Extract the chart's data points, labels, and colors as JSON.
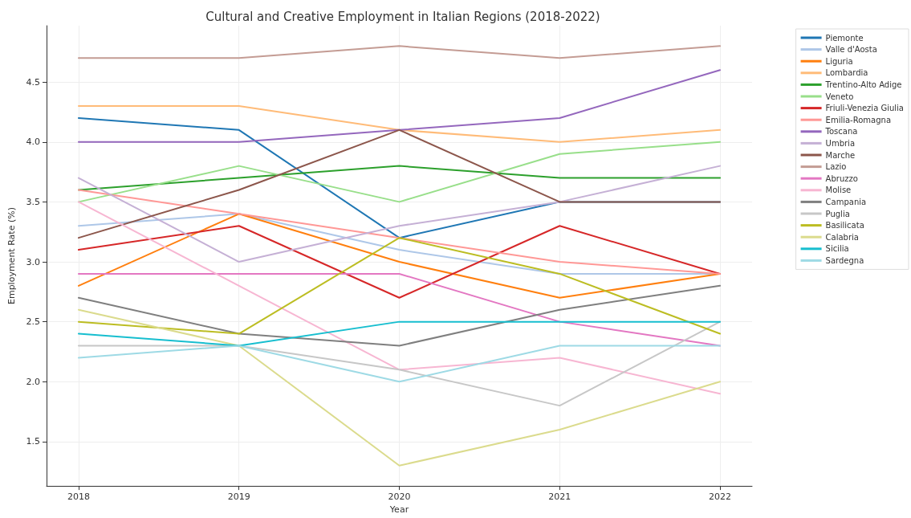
{
  "chart_data": {
    "type": "line",
    "title": "Cultural and Creative Employment in Italian Regions (2018-2022)",
    "xlabel": "Year",
    "ylabel": "Employment Rate (%)",
    "x": [
      2018,
      2019,
      2020,
      2021,
      2022
    ],
    "xlim": [
      2017.8,
      2022.2
    ],
    "xticks": [
      2018,
      2019,
      2020,
      2021,
      2022
    ],
    "ylim": [
      1.13,
      4.97
    ],
    "yticks": [
      1.5,
      {
        "value": 2,
        "label": "2.0"
      },
      2.5,
      {
        "value": 3,
        "label": "3.0"
      },
      3.5,
      {
        "value": 4,
        "label": "4.0"
      },
      4.5
    ],
    "grid": true,
    "legend": "top right",
    "marker": "none",
    "line_style": "solid",
    "series": [
      {
        "name": "Piemonte",
        "color": "#1f77b4",
        "values": [
          4.2,
          4.1,
          3.2,
          3.5,
          3.5
        ]
      },
      {
        "name": "Valle d'Aosta",
        "color": "#aec7e8",
        "values": [
          3.3,
          3.4,
          3.1,
          2.9,
          2.9
        ]
      },
      {
        "name": "Liguria",
        "color": "#ff7f0e",
        "values": [
          2.8,
          3.4,
          3.0,
          2.7,
          2.9
        ]
      },
      {
        "name": "Lombardia",
        "color": "#ffbb78",
        "values": [
          4.3,
          4.3,
          4.1,
          4.0,
          4.1
        ]
      },
      {
        "name": "Trentino-Alto Adige",
        "color": "#2ca02c",
        "values": [
          3.6,
          3.7,
          3.8,
          3.7,
          3.7
        ]
      },
      {
        "name": "Veneto",
        "color": "#98df8a",
        "values": [
          3.5,
          3.8,
          3.5,
          3.9,
          4.0
        ]
      },
      {
        "name": "Friuli-Venezia Giulia",
        "color": "#d62728",
        "values": [
          3.1,
          3.3,
          2.7,
          3.3,
          2.9
        ]
      },
      {
        "name": "Emilia-Romagna",
        "color": "#ff9896",
        "values": [
          3.6,
          3.4,
          3.2,
          3.0,
          2.9
        ]
      },
      {
        "name": "Toscana",
        "color": "#9467bd",
        "values": [
          4.0,
          4.0,
          4.1,
          4.2,
          4.6
        ]
      },
      {
        "name": "Umbria",
        "color": "#c5b0d5",
        "values": [
          3.7,
          3.0,
          3.3,
          3.5,
          3.8
        ]
      },
      {
        "name": "Marche",
        "color": "#8c564b",
        "values": [
          3.2,
          3.6,
          4.1,
          3.5,
          3.5
        ]
      },
      {
        "name": "Lazio",
        "color": "#c49c94",
        "values": [
          4.7,
          4.7,
          4.8,
          4.7,
          4.8
        ]
      },
      {
        "name": "Abruzzo",
        "color": "#e377c2",
        "values": [
          2.9,
          2.9,
          2.9,
          2.5,
          2.3
        ]
      },
      {
        "name": "Molise",
        "color": "#f7b6d2",
        "values": [
          3.5,
          2.8,
          2.1,
          2.2,
          1.9
        ]
      },
      {
        "name": "Campania",
        "color": "#7f7f7f",
        "values": [
          2.7,
          2.4,
          2.3,
          2.6,
          2.8
        ]
      },
      {
        "name": "Puglia",
        "color": "#c7c7c7",
        "values": [
          2.3,
          2.3,
          2.1,
          1.8,
          2.5
        ]
      },
      {
        "name": "Basilicata",
        "color": "#bcbd22",
        "values": [
          2.5,
          2.4,
          3.2,
          2.9,
          2.4
        ]
      },
      {
        "name": "Calabria",
        "color": "#dbdb8d",
        "values": [
          2.6,
          2.3,
          1.3,
          1.6,
          2.0
        ]
      },
      {
        "name": "Sicilia",
        "color": "#17becf",
        "values": [
          2.4,
          2.3,
          2.5,
          2.5,
          2.5
        ]
      },
      {
        "name": "Sardegna",
        "color": "#9edae5",
        "values": [
          2.2,
          2.3,
          2.0,
          2.3,
          2.3
        ]
      }
    ]
  }
}
